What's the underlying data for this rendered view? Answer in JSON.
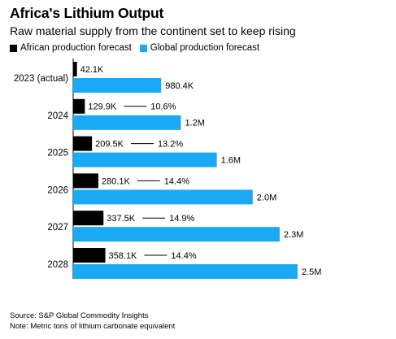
{
  "title": "Africa's Lithium Output",
  "subtitle": "Raw material supply from the continent set to keep rising",
  "legend": {
    "africa": "African production forecast",
    "global": "Global production forecast"
  },
  "colors": {
    "africa": "#000000",
    "global": "#1aa9f5",
    "connector": "#000000"
  },
  "chart_data": {
    "type": "bar",
    "orientation": "horizontal",
    "title": "Africa's Lithium Output",
    "subtitle": "Raw material supply from the continent set to keep rising",
    "categories": [
      "2023 (actual)",
      "2024",
      "2025",
      "2026",
      "2027",
      "2028"
    ],
    "series": [
      {
        "name": "African production forecast",
        "values": [
          42.1,
          129.9,
          209.5,
          280.1,
          337.5,
          358.1
        ],
        "labels": [
          "42.1K",
          "129.9K",
          "209.5K",
          "280.1K",
          "337.5K",
          "358.1K"
        ]
      },
      {
        "name": "Global production forecast",
        "values": [
          980.4,
          1200,
          1600,
          2000,
          2300,
          2500
        ],
        "labels": [
          "980.4K",
          "1.2M",
          "1.6M",
          "2.0M",
          "2.3M",
          "2.5M"
        ]
      }
    ],
    "shares": [
      "",
      "10.6%",
      "13.2%",
      "14.4%",
      "14.9%",
      "14.4%"
    ],
    "xlim": [
      0,
      2500
    ]
  },
  "footer": {
    "source": "Source: S&P Global Commodity Insights",
    "note": "Note: Metric tons of lithium carbonate equivalent"
  }
}
